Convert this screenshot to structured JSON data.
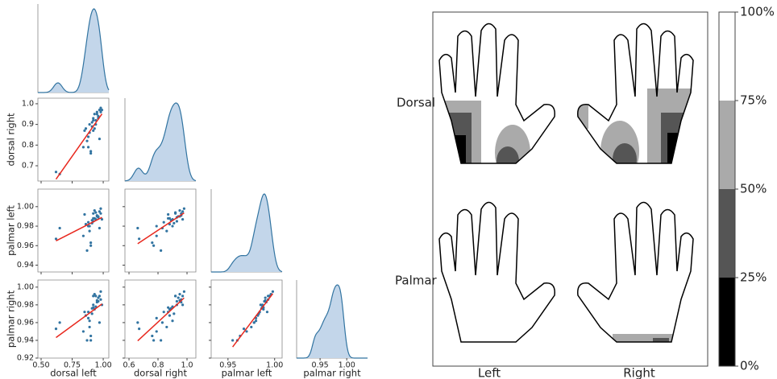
{
  "chart_data": [
    {
      "type": "pairplot",
      "point_color": "#3274a1",
      "line_color": "#e8281e",
      "kde_color": "#3274a1",
      "kde_fill": "#c3d6ea",
      "series": [
        {
          "name": "dorsal left",
          "xlim": [
            0.474,
            1.045
          ],
          "xticks": [
            {
              "value": 0.5,
              "label": "0.50"
            },
            {
              "value": 0.75,
              "label": "0.75"
            },
            {
              "value": 1.0,
              "label": "1.00"
            }
          ],
          "values": [
            0.62,
            0.65,
            0.85,
            0.88,
            0.9,
            0.92,
            0.95,
            0.97,
            0.93,
            0.87,
            0.91,
            0.96,
            0.98,
            0.89,
            0.94,
            0.92,
            0.86,
            0.9,
            0.95,
            0.97,
            0.88,
            0.93,
            0.99,
            0.84,
            0.91,
            0.96,
            0.94,
            0.89,
            0.92,
            0.98
          ]
        },
        {
          "name": "dorsal right",
          "xlim": [
            0.572,
            1.061
          ],
          "ylim": [
            0.626,
            1.027
          ],
          "xticks": [
            0.6,
            0.8,
            {
              "value": 1.0,
              "label": "1.0"
            }
          ],
          "yticks": [
            0.7,
            0.8,
            0.9,
            {
              "value": 1.0,
              "label": "1.0"
            }
          ],
          "values": [
            0.67,
            0.66,
            0.87,
            0.79,
            0.77,
            0.93,
            0.95,
            0.97,
            0.88,
            0.82,
            0.91,
            0.94,
            0.98,
            0.86,
            0.9,
            0.92,
            0.88,
            0.76,
            0.96,
            0.83,
            0.84,
            0.95,
            0.97,
            0.79,
            0.89,
            0.93,
            0.92,
            0.9,
            0.87,
            0.96
          ]
        },
        {
          "name": "palmar left",
          "xlim": [
            0.932,
            1.008
          ],
          "ylim": [
            0.933,
            1.018
          ],
          "xticks": [
            0.95,
            {
              "value": 1.0,
              "label": "1.00"
            }
          ],
          "yticks": [
            0.94,
            0.96,
            0.98,
            {
              "value": 1.0,
              "label": "1.00"
            }
          ],
          "values": [
            0.967,
            0.978,
            0.992,
            0.98,
            0.96,
            0.985,
            0.99,
            0.995,
            0.988,
            0.955,
            0.983,
            0.99,
            0.998,
            0.975,
            0.987,
            0.993,
            0.982,
            0.963,
            0.991,
            0.978,
            0.984,
            0.996,
            0.987,
            0.97,
            0.986,
            0.989,
            0.994,
            0.98,
            0.988,
            0.993
          ]
        },
        {
          "name": "palmar right",
          "xlim": [
            0.906,
            1.039
          ],
          "ylim": [
            0.92,
            1.008
          ],
          "xticks": [
            0.95,
            {
              "value": 1.0,
              "label": "1.00"
            }
          ],
          "yticks": [
            0.92,
            0.94,
            0.96,
            0.98,
            {
              "value": 1.0,
              "label": "1.00"
            }
          ],
          "values": [
            0.953,
            0.96,
            0.972,
            0.965,
            0.94,
            0.98,
            0.985,
            0.99,
            0.975,
            0.94,
            0.97,
            0.988,
            0.995,
            0.955,
            0.978,
            0.99,
            0.968,
            0.945,
            0.983,
            0.96,
            0.972,
            0.992,
            0.98,
            0.95,
            0.976,
            0.984,
            0.99,
            0.962,
            0.977,
            0.986
          ]
        }
      ]
    },
    {
      "type": "hand-map",
      "row_labels": [
        "Dorsal",
        "Palmar"
      ],
      "column_labels": [
        "Left",
        "Right"
      ],
      "colorbar": {
        "lim": [
          0,
          100
        ],
        "ticks": [
          {
            "value": 0,
            "label": "0%"
          },
          {
            "value": 25,
            "label": "25%"
          },
          {
            "value": 50,
            "label": "50%"
          },
          {
            "value": 75,
            "label": "75%"
          },
          {
            "value": 100,
            "label": "100%"
          }
        ],
        "colors": [
          "#000000",
          "#555555",
          "#aaaaaa",
          "#ffffff"
        ]
      }
    }
  ]
}
